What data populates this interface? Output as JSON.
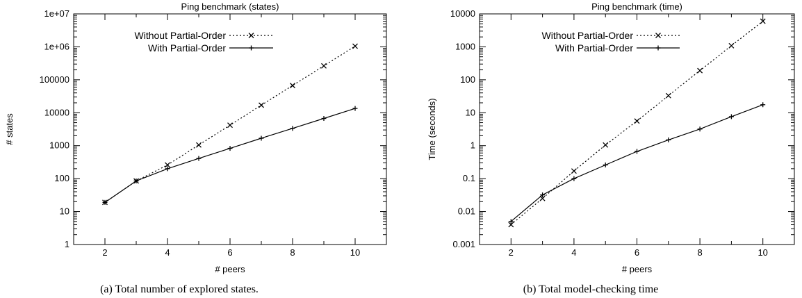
{
  "chart_data": [
    {
      "type": "line",
      "title": "Ping benchmark (states)",
      "xlabel": "# peers",
      "ylabel": "# states",
      "yscale": "log",
      "xlim": [
        1,
        11
      ],
      "ylim": [
        1,
        10000000
      ],
      "xticks": [
        2,
        4,
        6,
        8,
        10
      ],
      "yticks": [
        1,
        10,
        100,
        1000,
        10000,
        100000,
        1000000,
        10000000
      ],
      "ytick_labels": [
        "1",
        "10",
        "100",
        "1000",
        "10000",
        "100000",
        "1e+06",
        "1e+07"
      ],
      "legend_position": "top-left",
      "caption": "(a)  Total number of explored states.",
      "series": [
        {
          "name": "Without Partial-Order",
          "style": "dotted",
          "marker": "x",
          "x": [
            2,
            3,
            4,
            5,
            6,
            7,
            8,
            9,
            10
          ],
          "y": [
            19,
            85,
            260,
            1050,
            4200,
            17000,
            67000,
            265000,
            1050000
          ]
        },
        {
          "name": "With Partial-Order",
          "style": "solid",
          "marker": "+",
          "x": [
            2,
            3,
            4,
            5,
            6,
            7,
            8,
            9,
            10
          ],
          "y": [
            19,
            85,
            200,
            410,
            830,
            1680,
            3350,
            6700,
            13500
          ]
        }
      ]
    },
    {
      "type": "line",
      "title": "Ping benchmark (time)",
      "xlabel": "# peers",
      "ylabel": "Time (seconds)",
      "yscale": "log",
      "xlim": [
        1,
        11
      ],
      "ylim": [
        0.001,
        10000
      ],
      "xticks": [
        2,
        4,
        6,
        8,
        10
      ],
      "yticks": [
        0.001,
        0.01,
        0.1,
        1,
        10,
        100,
        1000,
        10000
      ],
      "ytick_labels": [
        "0.001",
        "0.01",
        "0.1",
        "1",
        "10",
        "100",
        "1000",
        "10000"
      ],
      "legend_position": "top-left",
      "caption": "(b)  Total model-checking time",
      "series": [
        {
          "name": "Without Partial-Order",
          "style": "dotted",
          "marker": "x",
          "x": [
            2,
            3,
            4,
            5,
            6,
            7,
            8,
            9,
            10
          ],
          "y": [
            0.004,
            0.025,
            0.17,
            1.05,
            5.6,
            33,
            190,
            1080,
            6000
          ]
        },
        {
          "name": "With Partial-Order",
          "style": "solid",
          "marker": "+",
          "x": [
            2,
            3,
            4,
            5,
            6,
            7,
            8,
            9,
            10
          ],
          "y": [
            0.005,
            0.032,
            0.1,
            0.26,
            0.67,
            1.5,
            3.2,
            7.6,
            17.5
          ]
        }
      ]
    }
  ]
}
